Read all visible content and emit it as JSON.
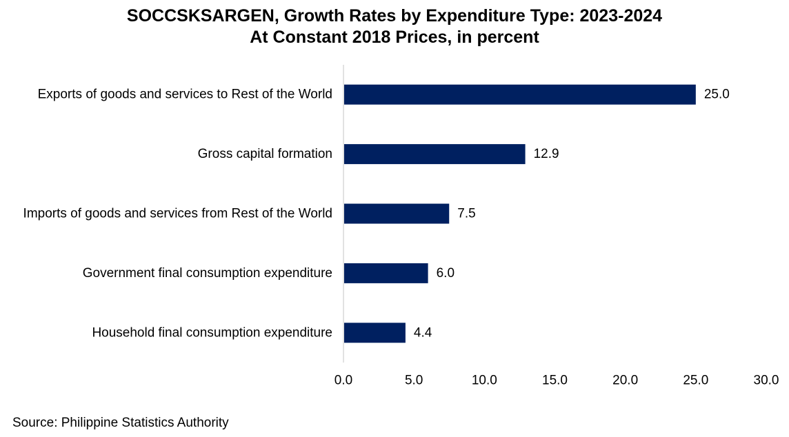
{
  "chart_data": {
    "type": "bar",
    "orientation": "horizontal",
    "title": "SOCCSKSARGEN, Growth Rates by Expenditure Type: 2023-2024",
    "subtitle": "At Constant 2018 Prices, in percent",
    "categories": [
      "Exports of goods and services to Rest of the World",
      "Gross capital formation",
      "Imports of goods and services from Rest of the World",
      "Government final consumption expenditure",
      "Household final consumption expenditure"
    ],
    "values": [
      25.0,
      12.9,
      7.5,
      6.0,
      4.4
    ],
    "value_labels": [
      "25.0",
      "12.9",
      "7.5",
      "6.0",
      "4.4"
    ],
    "xlim": [
      0,
      30
    ],
    "xticks": [
      "0.0",
      "5.0",
      "10.0",
      "15.0",
      "20.0",
      "25.0",
      "30.0"
    ],
    "xlabel": "",
    "ylabel": "",
    "grid": false,
    "legend": "none",
    "bar_color": "#002060",
    "axis_color": "#d9d9d9"
  },
  "source": "Source: Philippine Statistics Authority"
}
